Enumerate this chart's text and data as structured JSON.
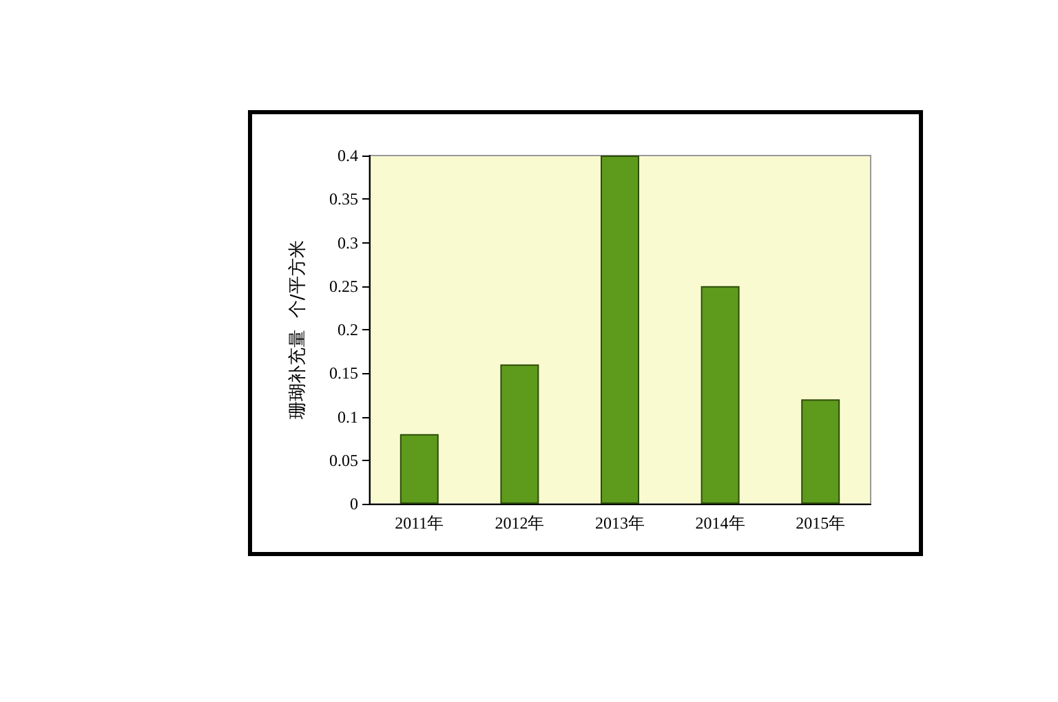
{
  "chart_data": {
    "type": "bar",
    "ylabel": "珊瑚补充量  个/平方米",
    "categories": [
      "2011年",
      "2012年",
      "2013年",
      "2014年",
      "2015年"
    ],
    "values": [
      0.08,
      0.16,
      0.4,
      0.25,
      0.12
    ],
    "color": "#5e9a1c",
    "ylim": [
      0,
      0.4
    ],
    "yticks": [
      0,
      0.05,
      0.1,
      0.15,
      0.2,
      0.25,
      0.3,
      0.35,
      0.4
    ],
    "grid": false
  }
}
